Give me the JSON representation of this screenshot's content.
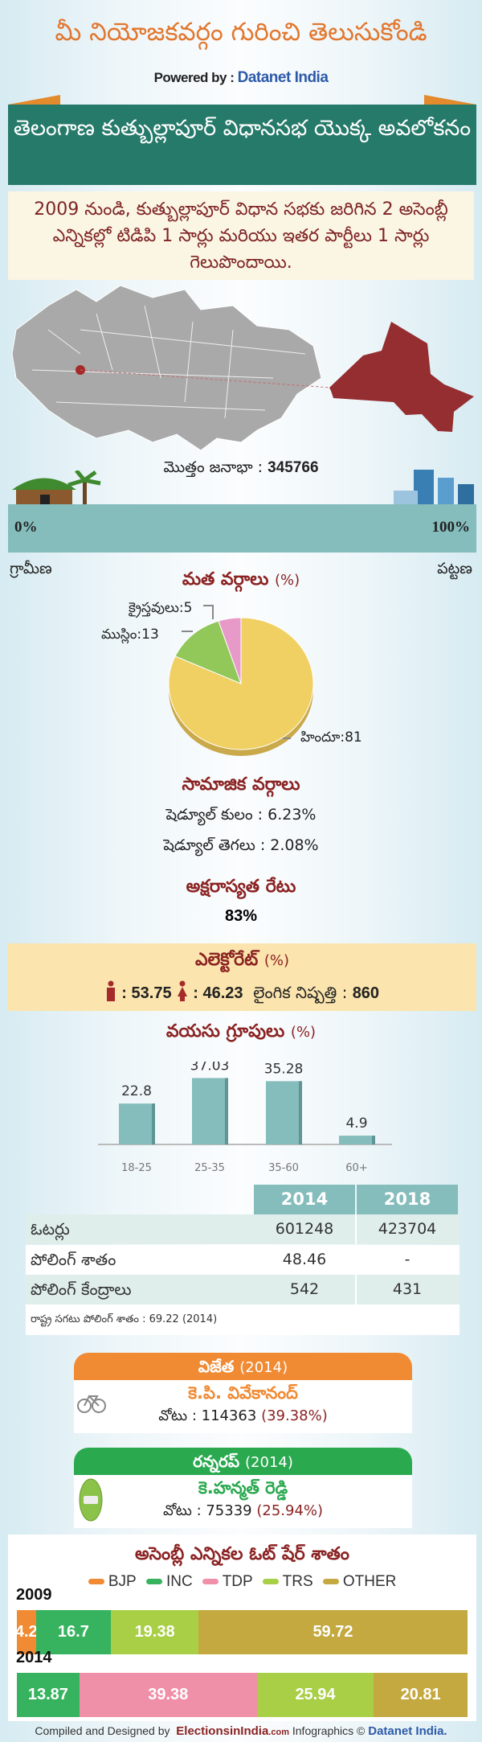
{
  "header": {
    "title": "మీ నియోజకవర్గం గురించి తెలుసుకోండి",
    "powered_by": "Powered by :",
    "powered_brand": "Datanet India"
  },
  "ribbon": {
    "title": "తెలంగాణ కుత్బుల్లాపూర్ విధానసభ యొక్క అవలోకనం"
  },
  "summary": {
    "text": "2009 నుండి, కుత్బుల్లాపూర్ విధాన సభకు జరిగిన 2 అసెంబ్లీ ఎన్నికల్లో టిడిపి 1 సార్లు మరియు ఇతర పార్టీలు 1 సార్లు గెలుపొందాయి."
  },
  "population": {
    "label": "మొత్తం జనాభా :",
    "value": "345766",
    "rural_pct_label": "0%",
    "urban_pct_label": "100%",
    "urban_share": 100,
    "rural_label": "గ్రామీణ",
    "urban_label": "పట్టణ"
  },
  "religion": {
    "title": "మత వర్గాలు",
    "unit": "(%)",
    "chart_data": {
      "type": "pie",
      "slices": [
        {
          "label": "హిందూ",
          "value": 81,
          "color": "#f0cf63"
        },
        {
          "label": "ముస్లిం",
          "value": 13,
          "color": "#92c75a"
        },
        {
          "label": "క్రైస్తవులు",
          "value": 5,
          "color": "#e79ac8"
        }
      ]
    },
    "labels": {
      "hindu": "హిందూ:81",
      "muslim": "ముస్లిం:13",
      "christian": "క్రైస్తవులు:5"
    }
  },
  "social": {
    "title": "సామాజిక వర్గాలు",
    "sc": "షెడ్యూల్ కులం :  6.23%",
    "st": "షెడ్యూల్ తెగలు :  2.08%"
  },
  "literacy": {
    "title": "అక్షరాస్యత రేటు",
    "value": "83%"
  },
  "electorate": {
    "title": "ఎలెక్టోరేట్",
    "unit": "(%)",
    "male": ": 53.75",
    "female": ": 46.23",
    "sex_ratio_label": "లైంగిక నిష్పత్తి :",
    "sex_ratio": "860",
    "color": "#a52a2a"
  },
  "age": {
    "title": "వయసు గ్రూపులు",
    "unit": "(%)",
    "chart_data": {
      "type": "bar",
      "categories": [
        "18-25",
        "25-35",
        "35-60",
        "60+"
      ],
      "values": [
        22.8,
        37.03,
        35.28,
        4.9
      ],
      "value_labels": [
        "22.8",
        "37.03",
        "35.28",
        "4.9"
      ],
      "color": "#85bcbc",
      "ylim": [
        0,
        40
      ]
    }
  },
  "table": {
    "headers": [
      "2014",
      "2018"
    ],
    "rows": [
      {
        "label": "ఓటర్లు",
        "v2014": "601248",
        "v2018": "423704"
      },
      {
        "label": "పోలింగ్ శాతం",
        "v2014": "48.46",
        "v2018": "-"
      },
      {
        "label": "పోలింగ్ కేంద్రాలు",
        "v2014": "542",
        "v2018": "431"
      }
    ],
    "note": "రాష్ట్ర సగటు పోలింగ్ శాతం : 69.22 (2014)"
  },
  "winner": {
    "title": "విజేత",
    "year": "(2014)",
    "name": "కె.పి. వివేకానంద్",
    "votes_label": "వోటు : 114363",
    "pct": "(39.38%)",
    "color": "#f08a33",
    "icon": "bicycle-icon"
  },
  "runner": {
    "title": "రన్నరప్",
    "year": "(2014)",
    "name": "కె.హన్మత్ రెడ్డి",
    "votes_label": "వోటు : 75339",
    "pct": "(25.94%)",
    "color": "#2aa94f",
    "icon": "car-icon"
  },
  "vote_share": {
    "title": "అసెంబ్లీ ఎన్నికల ఓట్ షేర్ శాతం",
    "chart_data": {
      "type": "bar",
      "stacked": true,
      "orientation": "horizontal",
      "legend": [
        {
          "name": "BJP",
          "color": "#f08a33"
        },
        {
          "name": "INC",
          "color": "#37b35f"
        },
        {
          "name": "TDP",
          "color": "#f08fa8"
        },
        {
          "name": "TRS",
          "color": "#a8cf45"
        },
        {
          "name": "OTHER",
          "color": "#c4a940"
        }
      ],
      "rows": [
        {
          "year": "2009",
          "segments": [
            {
              "party": "BJP",
              "value": 4.2,
              "label": "4.2"
            },
            {
              "party": "INC",
              "value": 16.7,
              "label": "16.7"
            },
            {
              "party": "TRS",
              "value": 19.38,
              "label": "19.38"
            },
            {
              "party": "OTHER",
              "value": 59.72,
              "label": "59.72"
            }
          ]
        },
        {
          "year": "2014",
          "segments": [
            {
              "party": "INC",
              "value": 13.87,
              "label": "13.87"
            },
            {
              "party": "TDP",
              "value": 39.38,
              "label": "39.38"
            },
            {
              "party": "TRS",
              "value": 25.94,
              "label": "25.94"
            },
            {
              "party": "OTHER",
              "value": 20.81,
              "label": "20.81"
            }
          ]
        }
      ]
    }
  },
  "footer": {
    "text1": "Compiled and Designed by",
    "brand1": "ElectionsinIndia",
    "brand1_suffix": ".com",
    "text2": "Infographics ©",
    "brand2": "Datanet India."
  }
}
